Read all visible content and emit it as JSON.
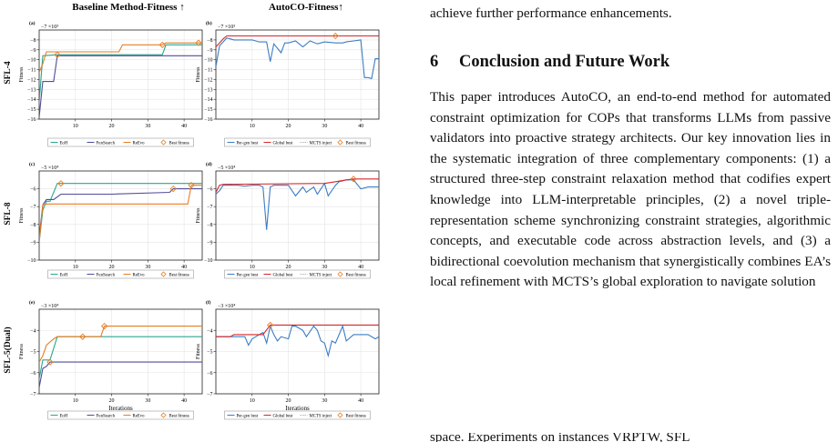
{
  "figure": {
    "col_titles": [
      "Baseline Method-Fitness ↑",
      "AutoCO-Fitness↑"
    ],
    "row_labels": [
      "SFL-4",
      "SFL-8",
      "SFL-5(Dual)"
    ],
    "panel_letters": [
      "(a)",
      "(b)",
      "(c)",
      "(d)",
      "(e)",
      "(f)"
    ],
    "ylabel": "Fitness",
    "xlabel": "Iterations",
    "legend_left": [
      "EoH",
      "FunSearch",
      "ReEvo",
      "Best fitness"
    ],
    "legend_right": [
      "Per-gen best",
      "Global best",
      "MCTS inject",
      "Best fitness"
    ],
    "colors": {
      "EoH": "#2ca58d",
      "FunSearch": "#4e4e9a",
      "ReEvo": "#e67e22",
      "PerGen": "#3b7dc4",
      "Global": "#d62728",
      "MCTS": "#d62728",
      "BestMarker": "#e67e22"
    }
  },
  "chart_data": [
    {
      "type": "line",
      "title": "",
      "xlabel": "",
      "ylabel": "Fitness",
      "exponent": "−7 ×10³",
      "xlim": [
        0,
        45
      ],
      "ylim": [
        -16,
        -7
      ],
      "xticks": [
        10,
        20,
        30,
        40
      ],
      "yticks": [
        -8,
        -9,
        -10,
        -11,
        -12,
        -13,
        -14,
        -15,
        -16
      ],
      "series": [
        {
          "name": "EoH",
          "x": [
            0,
            1,
            5,
            34,
            35,
            45
          ],
          "y": [
            -14.3,
            -9.6,
            -9.5,
            -9.5,
            -8.5,
            -8.5
          ]
        },
        {
          "name": "FunSearch",
          "x": [
            0,
            1,
            4,
            5,
            45
          ],
          "y": [
            -15.8,
            -12.2,
            -12.2,
            -9.6,
            -9.6
          ]
        },
        {
          "name": "ReEvo",
          "x": [
            0,
            1,
            2,
            22,
            23,
            34,
            35,
            45
          ],
          "y": [
            -11.3,
            -10.4,
            -9.2,
            -9.2,
            -8.5,
            -8.5,
            -8.3,
            -8.3
          ]
        },
        {
          "name": "Best fitness",
          "x": [
            5,
            34,
            44
          ],
          "y": [
            -9.5,
            -8.5,
            -8.3
          ]
        }
      ]
    },
    {
      "type": "line",
      "title": "",
      "xlabel": "",
      "ylabel": "Fitness",
      "exponent": "−7 ×10³",
      "xlim": [
        0,
        45
      ],
      "ylim": [
        -16,
        -7
      ],
      "xticks": [
        10,
        20,
        30,
        40
      ],
      "yticks": [
        -8,
        -9,
        -10,
        -11,
        -12,
        -13,
        -14,
        -15,
        -16
      ],
      "series": [
        {
          "name": "Per-gen best",
          "x": [
            0,
            1,
            2,
            3,
            5,
            10,
            12,
            14,
            15,
            16,
            18,
            19,
            20,
            22,
            24,
            26,
            28,
            30,
            33,
            35,
            36,
            38,
            40,
            41,
            42,
            43,
            44,
            45
          ],
          "y": [
            -10.7,
            -8.6,
            -8.2,
            -7.8,
            -8.0,
            -8.0,
            -8.2,
            -8.2,
            -10.2,
            -8.4,
            -9.3,
            -8.3,
            -8.3,
            -8.1,
            -8.7,
            -8.1,
            -8.4,
            -8.2,
            -8.3,
            -8.3,
            -8.2,
            -8.1,
            -8.0,
            -11.8,
            -11.8,
            -11.9,
            -9.9,
            -9.9
          ]
        },
        {
          "name": "Global best",
          "x": [
            0,
            1,
            2,
            3,
            45
          ],
          "y": [
            -8.7,
            -8.3,
            -7.9,
            -7.6,
            -7.6
          ]
        },
        {
          "name": "Best fitness",
          "x": [
            33
          ],
          "y": [
            -7.6
          ]
        }
      ]
    },
    {
      "type": "line",
      "title": "",
      "xlabel": "",
      "ylabel": "Fitness",
      "exponent": "−5 ×10⁴",
      "xlim": [
        0,
        45
      ],
      "ylim": [
        -10,
        -5
      ],
      "xticks": [
        10,
        20,
        30,
        40
      ],
      "yticks": [
        -6,
        -7,
        -8,
        -9,
        -10
      ],
      "series": [
        {
          "name": "EoH",
          "x": [
            0,
            1,
            2,
            3,
            5,
            6,
            45
          ],
          "y": [
            -9.0,
            -7.2,
            -6.7,
            -6.7,
            -5.7,
            -5.7,
            -5.7
          ]
        },
        {
          "name": "FunSearch",
          "x": [
            0,
            1,
            2,
            4,
            6,
            20,
            36,
            37,
            45
          ],
          "y": [
            -8.7,
            -6.9,
            -6.6,
            -6.6,
            -6.3,
            -6.3,
            -6.2,
            -6.0,
            -6.0
          ]
        },
        {
          "name": "ReEvo",
          "x": [
            0,
            1,
            2,
            3,
            41,
            42,
            45
          ],
          "y": [
            -9.0,
            -6.9,
            -6.85,
            -6.85,
            -6.85,
            -5.8,
            -5.8
          ]
        },
        {
          "name": "Best fitness",
          "x": [
            6,
            37,
            42
          ],
          "y": [
            -5.7,
            -6.0,
            -5.8
          ]
        }
      ]
    },
    {
      "type": "line",
      "title": "",
      "xlabel": "",
      "ylabel": "Fitness",
      "exponent": "−5 ×10⁴",
      "xlim": [
        0,
        45
      ],
      "ylim": [
        -10,
        -5
      ],
      "xticks": [
        10,
        20,
        30,
        40
      ],
      "yticks": [
        -6,
        -7,
        -8,
        -9,
        -10
      ],
      "series": [
        {
          "name": "Per-gen best",
          "x": [
            0,
            1,
            2,
            4,
            6,
            8,
            10,
            12,
            13,
            14,
            15,
            16,
            18,
            20,
            22,
            24,
            25,
            27,
            28,
            30,
            31,
            33,
            34,
            36,
            38,
            40,
            42,
            44,
            45
          ],
          "y": [
            -6.3,
            -6.1,
            -5.8,
            -5.8,
            -5.8,
            -5.85,
            -5.8,
            -5.8,
            -5.9,
            -8.3,
            -5.9,
            -5.8,
            -5.8,
            -5.8,
            -6.4,
            -5.9,
            -6.2,
            -5.9,
            -6.3,
            -5.7,
            -6.4,
            -5.8,
            -5.6,
            -5.5,
            -5.5,
            -6.0,
            -5.9,
            -5.9,
            -5.9
          ]
        },
        {
          "name": "Global best",
          "x": [
            0,
            1,
            2,
            30,
            33,
            36,
            38,
            45
          ],
          "y": [
            -6.2,
            -5.8,
            -5.75,
            -5.7,
            -5.6,
            -5.5,
            -5.45,
            -5.45
          ]
        },
        {
          "name": "Best fitness",
          "x": [
            38
          ],
          "y": [
            -5.45
          ]
        }
      ]
    },
    {
      "type": "line",
      "title": "",
      "xlabel": "Iterations",
      "ylabel": "Fitness",
      "exponent": "−3 ×10⁴",
      "xlim": [
        0,
        45
      ],
      "ylim": [
        -7,
        -3
      ],
      "xticks": [
        10,
        20,
        30,
        40
      ],
      "yticks": [
        -4,
        -5,
        -6,
        -7
      ],
      "series": [
        {
          "name": "EoH",
          "x": [
            0,
            1,
            3,
            5,
            45
          ],
          "y": [
            -6.3,
            -5.4,
            -5.4,
            -4.3,
            -4.3
          ]
        },
        {
          "name": "FunSearch",
          "x": [
            0,
            1,
            2,
            3,
            45
          ],
          "y": [
            -6.7,
            -5.8,
            -5.7,
            -5.5,
            -5.5
          ]
        },
        {
          "name": "ReEvo",
          "x": [
            0,
            1,
            2,
            4,
            5,
            17,
            18,
            45
          ],
          "y": [
            -5.5,
            -5.2,
            -4.7,
            -4.4,
            -4.3,
            -4.3,
            -3.8,
            -3.8
          ]
        },
        {
          "name": "Best fitness",
          "x": [
            3,
            12,
            18
          ],
          "y": [
            -5.5,
            -4.3,
            -3.8
          ]
        }
      ]
    },
    {
      "type": "line",
      "title": "",
      "xlabel": "Iterations",
      "ylabel": "Fitness",
      "exponent": "−3 ×10⁴",
      "xlim": [
        0,
        45
      ],
      "ylim": [
        -7,
        -3
      ],
      "xticks": [
        10,
        20,
        30,
        40
      ],
      "yticks": [
        -4,
        -5,
        -6,
        -7
      ],
      "series": [
        {
          "name": "Per-gen best",
          "x": [
            0,
            4,
            6,
            8,
            9,
            10,
            11,
            12,
            13,
            14,
            15,
            16,
            17,
            18,
            20,
            21,
            22,
            24,
            25,
            27,
            28,
            29,
            30,
            31,
            32,
            33,
            35,
            36,
            38,
            40,
            42,
            44,
            45
          ],
          "y": [
            -4.3,
            -4.3,
            -4.3,
            -4.3,
            -4.7,
            -4.4,
            -4.3,
            -4.2,
            -4.1,
            -4.6,
            -3.8,
            -4.2,
            -4.5,
            -4.3,
            -4.4,
            -3.8,
            -3.8,
            -4.0,
            -4.3,
            -3.8,
            -4.0,
            -4.5,
            -4.6,
            -5.2,
            -4.5,
            -4.6,
            -3.8,
            -4.5,
            -4.2,
            -4.2,
            -4.2,
            -4.4,
            -4.3
          ]
        },
        {
          "name": "Global best",
          "x": [
            0,
            4,
            5,
            13,
            15,
            45
          ],
          "y": [
            -4.3,
            -4.3,
            -4.2,
            -4.2,
            -3.75,
            -3.75
          ]
        },
        {
          "name": "Best fitness",
          "x": [
            15
          ],
          "y": [
            -3.75
          ]
        }
      ]
    }
  ],
  "text": {
    "lead": "achieve further performance enhancements.",
    "sec_num": "6",
    "sec_title": "Conclusion and Future Work",
    "body": "This paper introduces AutoCO, an end-to-end method for automated constraint optimization for COPs that transforms LLMs from passive validators into proactive strategy architects. Our key innovation lies in the systematic integration of three complementary components: (1) a structured three-step constraint relaxation method that codifies expert knowledge into LLM-interpretable principles, (2) a novel triple-representation scheme synchronizing constraint strategies, algorithmic concepts, and executable code across abstraction levels, and (3) a bidirectional coevolution mechanism that synergistically combines EA’s local refinement with MCTS’s global exploration to navigate solution",
    "clipped": "space. Experiments on instances VRPTW, SFL"
  }
}
